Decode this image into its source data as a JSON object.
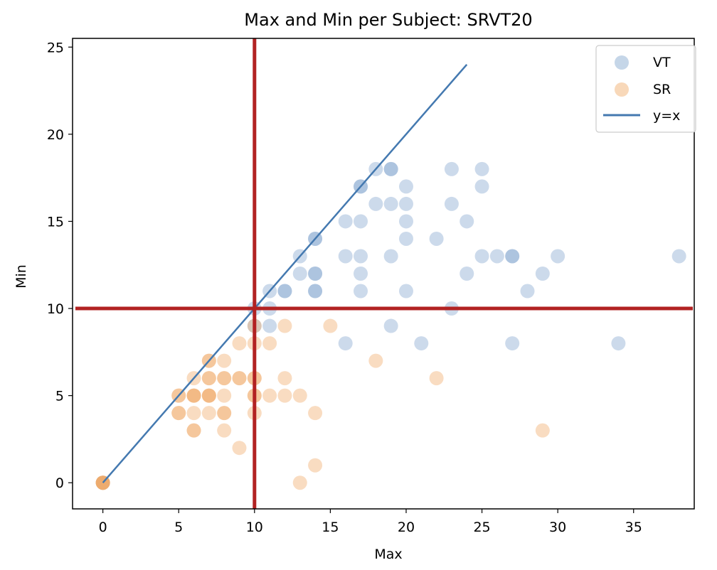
{
  "chart_data": {
    "type": "scatter",
    "title": "Max and Min per Subject: SRVT20",
    "xlabel": "Max",
    "ylabel": "Min",
    "xlim": [
      -2,
      39
    ],
    "ylim": [
      -1.5,
      25.5
    ],
    "xticks": [
      0,
      5,
      10,
      15,
      20,
      25,
      30,
      35
    ],
    "yticks": [
      0,
      5,
      10,
      15,
      20,
      25
    ],
    "colors": {
      "VT": "#7fa3cc",
      "SR": "#f0a864",
      "identity": "#4479b0",
      "threshold": "#b22222"
    },
    "legend_position": "top-right",
    "series": [
      {
        "name": "VT",
        "points": [
          [
            10,
            10
          ],
          [
            10,
            9
          ],
          [
            11,
            11
          ],
          [
            11,
            10
          ],
          [
            11,
            9
          ],
          [
            12,
            11
          ],
          [
            12,
            11
          ],
          [
            13,
            13
          ],
          [
            13,
            12
          ],
          [
            14,
            14
          ],
          [
            14,
            14
          ],
          [
            14,
            12
          ],
          [
            14,
            12
          ],
          [
            14,
            11
          ],
          [
            14,
            11
          ],
          [
            16,
            15
          ],
          [
            16,
            13
          ],
          [
            16,
            8
          ],
          [
            17,
            17
          ],
          [
            17,
            17
          ],
          [
            17,
            15
          ],
          [
            17,
            13
          ],
          [
            17,
            12
          ],
          [
            17,
            11
          ],
          [
            18,
            18
          ],
          [
            18,
            16
          ],
          [
            19,
            18
          ],
          [
            19,
            18
          ],
          [
            19,
            16
          ],
          [
            19,
            13
          ],
          [
            19,
            9
          ],
          [
            20,
            17
          ],
          [
            20,
            16
          ],
          [
            20,
            15
          ],
          [
            20,
            14
          ],
          [
            20,
            11
          ],
          [
            21,
            8
          ],
          [
            22,
            14
          ],
          [
            23,
            18
          ],
          [
            23,
            16
          ],
          [
            23,
            10
          ],
          [
            24,
            15
          ],
          [
            24,
            12
          ],
          [
            25,
            18
          ],
          [
            25,
            17
          ],
          [
            25,
            13
          ],
          [
            26,
            13
          ],
          [
            27,
            13
          ],
          [
            27,
            13
          ],
          [
            27,
            8
          ],
          [
            28,
            11
          ],
          [
            29,
            12
          ],
          [
            30,
            13
          ],
          [
            34,
            8
          ],
          [
            38,
            13
          ],
          [
            0,
            0
          ]
        ]
      },
      {
        "name": "SR",
        "points": [
          [
            0,
            0
          ],
          [
            0,
            0
          ],
          [
            0,
            0
          ],
          [
            0,
            0
          ],
          [
            0,
            0
          ],
          [
            5,
            5
          ],
          [
            5,
            5
          ],
          [
            5,
            4
          ],
          [
            5,
            4
          ],
          [
            6,
            6
          ],
          [
            6,
            5
          ],
          [
            6,
            5
          ],
          [
            6,
            5
          ],
          [
            6,
            4
          ],
          [
            6,
            3
          ],
          [
            6,
            3
          ],
          [
            7,
            7
          ],
          [
            7,
            7
          ],
          [
            7,
            6
          ],
          [
            7,
            6
          ],
          [
            7,
            5
          ],
          [
            7,
            5
          ],
          [
            7,
            5
          ],
          [
            7,
            4
          ],
          [
            8,
            7
          ],
          [
            8,
            6
          ],
          [
            8,
            6
          ],
          [
            8,
            5
          ],
          [
            8,
            4
          ],
          [
            8,
            4
          ],
          [
            8,
            3
          ],
          [
            9,
            8
          ],
          [
            9,
            6
          ],
          [
            9,
            6
          ],
          [
            9,
            2
          ],
          [
            10,
            9
          ],
          [
            10,
            8
          ],
          [
            10,
            6
          ],
          [
            10,
            6
          ],
          [
            10,
            5
          ],
          [
            10,
            5
          ],
          [
            10,
            4
          ],
          [
            11,
            8
          ],
          [
            11,
            5
          ],
          [
            12,
            9
          ],
          [
            12,
            6
          ],
          [
            12,
            5
          ],
          [
            13,
            5
          ],
          [
            13,
            0
          ],
          [
            14,
            4
          ],
          [
            14,
            1
          ],
          [
            15,
            9
          ],
          [
            18,
            7
          ],
          [
            22,
            6
          ],
          [
            29,
            3
          ]
        ]
      }
    ],
    "lines": [
      {
        "name": "y=x",
        "x": [
          0,
          24
        ],
        "y": [
          0,
          24
        ]
      }
    ],
    "reference_lines": {
      "vertical_x": 10,
      "horizontal_y": 10
    },
    "legend": [
      "VT",
      "SR",
      "y=x"
    ]
  }
}
